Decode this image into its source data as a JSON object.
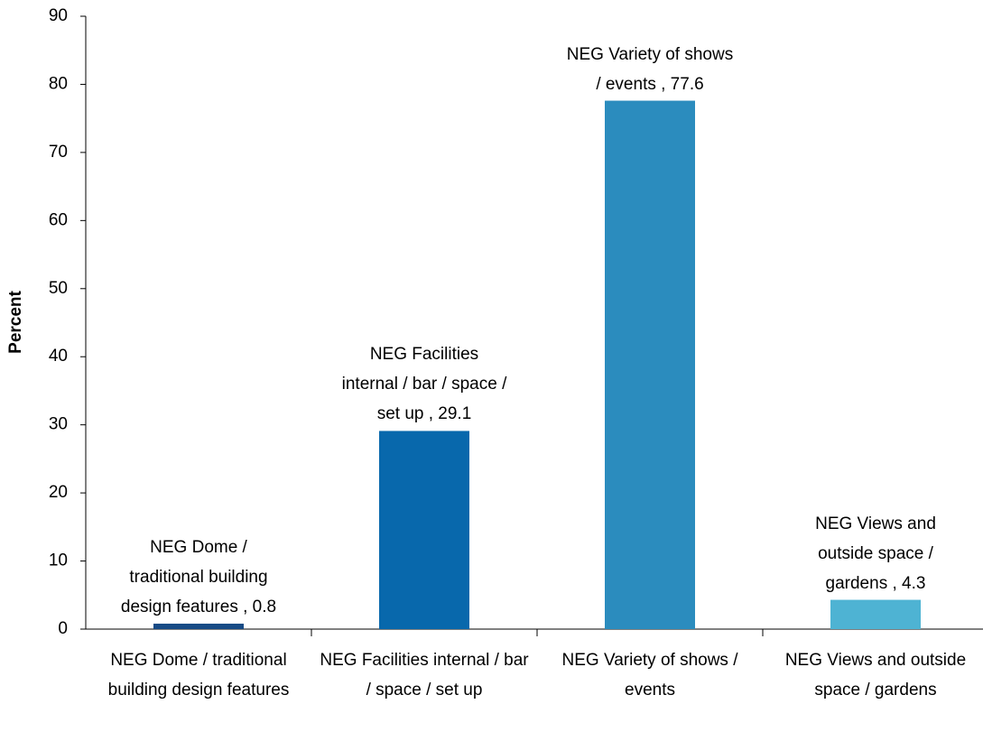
{
  "chart_data": {
    "type": "bar",
    "y_label": "Percent",
    "categories": [
      "NEG Dome / traditional building design features",
      "NEG Facilities internal / bar / space / set up",
      "NEG Variety of shows / events",
      "NEG Views and outside space / gardens"
    ],
    "values": [
      0.8,
      29.1,
      77.6,
      4.3
    ],
    "value_labels": [
      "NEG Dome / traditional building design features , 0.8",
      "NEG Facilities internal / bar / space / set up , 29.1",
      "NEG Variety of shows / events , 77.6",
      "NEG Views and outside space / gardens , 4.3"
    ],
    "colors": [
      "#174a85",
      "#0868ac",
      "#2b8cbe",
      "#4eb3d3"
    ],
    "ylim": [
      0,
      90
    ],
    "yticks": [
      0,
      10,
      20,
      30,
      40,
      50,
      60,
      70,
      80,
      90
    ],
    "grid": false
  }
}
